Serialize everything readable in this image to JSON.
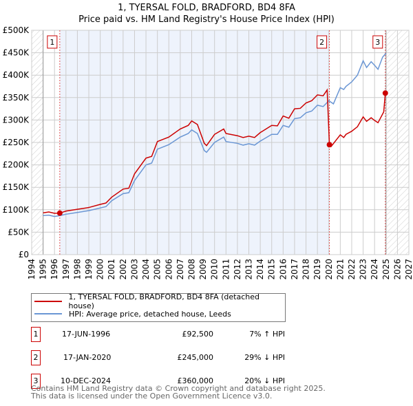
{
  "title": "1, TYERSAL FOLD, BRADFORD, BD4 8FA",
  "subtitle": "Price paid vs. HM Land Registry's House Price Index (HPI)",
  "chart_data": {
    "type": "line",
    "title": "1, TYERSAL FOLD, BRADFORD, BD4 8FA",
    "subtitle": "Price paid vs. HM Land Registry's House Price Index (HPI)",
    "xlim": [
      1994,
      2027
    ],
    "ylim": [
      0,
      500000
    ],
    "x_ticks": [
      "1994",
      "1995",
      "1996",
      "1997",
      "1998",
      "1999",
      "2000",
      "2001",
      "2002",
      "2003",
      "2004",
      "2005",
      "2006",
      "2007",
      "2008",
      "2009",
      "2010",
      "2011",
      "2012",
      "2013",
      "2014",
      "2015",
      "2016",
      "2017",
      "2018",
      "2019",
      "2020",
      "2021",
      "2022",
      "2023",
      "2024",
      "2025",
      "2026",
      "2027"
    ],
    "y_ticks": [
      {
        "v": 0,
        "l": "£0"
      },
      {
        "v": 50000,
        "l": "£50K"
      },
      {
        "v": 100000,
        "l": "£100K"
      },
      {
        "v": 150000,
        "l": "£150K"
      },
      {
        "v": 200000,
        "l": "£200K"
      },
      {
        "v": 250000,
        "l": "£250K"
      },
      {
        "v": 300000,
        "l": "£300K"
      },
      {
        "v": 350000,
        "l": "£350K"
      },
      {
        "v": 400000,
        "l": "£400K"
      },
      {
        "v": 450000,
        "l": "£450K"
      },
      {
        "v": 500000,
        "l": "£500K"
      }
    ],
    "series": [
      {
        "name": "HPI: Average price, detached house, Leeds",
        "color": "#6a96d4",
        "x": [
          1995,
          1995.5,
          1996,
          1996.5,
          1997,
          1998,
          1999,
          2000,
          2000.5,
          2001,
          2002,
          2002.5,
          2003,
          2004,
          2004.5,
          2005,
          2006,
          2007,
          2007.7,
          2008,
          2008.5,
          2009.1,
          2009.3,
          2010,
          2010.8,
          2011,
          2012,
          2012.5,
          2013,
          2013.5,
          2014,
          2015,
          2015.5,
          2016,
          2016.5,
          2017,
          2017.5,
          2018,
          2018.5,
          2019,
          2019.5,
          2020,
          2020.4,
          2021,
          2021.3,
          2021.5,
          2022,
          2022.5,
          2023,
          2023.3,
          2023.7,
          2024,
          2024.3,
          2024.7,
          2025
        ],
        "y": [
          87000,
          88000,
          85000,
          87000,
          90000,
          94000,
          98000,
          104000,
          107000,
          120000,
          136000,
          138000,
          165000,
          200000,
          204000,
          235000,
          245000,
          262000,
          270000,
          278000,
          270000,
          232000,
          228000,
          250000,
          262000,
          252000,
          248000,
          244000,
          247000,
          244000,
          253000,
          268000,
          268000,
          288000,
          284000,
          303000,
          305000,
          316000,
          320000,
          333000,
          330000,
          343000,
          336000,
          372000,
          368000,
          375000,
          385000,
          400000,
          432000,
          417000,
          430000,
          422000,
          413000,
          440000,
          449000
        ]
      },
      {
        "name": "1, TYERSAL FOLD, BRADFORD, BD4 8FA (detached house)",
        "color": "#cc0000",
        "x": [
          1995,
          1995.5,
          1996,
          1996.46,
          1997,
          1998,
          1999,
          2000,
          2000.5,
          2001,
          2002,
          2002.5,
          2003,
          2004,
          2004.5,
          2005,
          2006,
          2007,
          2007.7,
          2008,
          2008.5,
          2009.1,
          2009.3,
          2010,
          2010.8,
          2011,
          2012,
          2012.5,
          2013,
          2013.5,
          2014,
          2015,
          2015.5,
          2016,
          2016.5,
          2017,
          2017.5,
          2018,
          2018.5,
          2019,
          2019.5,
          2019.85,
          2020.05,
          2020.2,
          2021,
          2021.3,
          2021.5,
          2022,
          2022.5,
          2023,
          2023.3,
          2023.7,
          2024,
          2024.3,
          2024.8,
          2024.94
        ],
        "y": [
          93000,
          95000,
          92000,
          92500,
          97000,
          101000,
          105000,
          112000,
          115000,
          128000,
          146000,
          148000,
          180000,
          215000,
          219000,
          252000,
          262000,
          280000,
          288000,
          298000,
          290000,
          248000,
          243000,
          268000,
          280000,
          270000,
          265000,
          261000,
          264000,
          261000,
          272000,
          288000,
          287000,
          309000,
          304000,
          325000,
          326000,
          338000,
          343000,
          356000,
          354000,
          367000,
          245000,
          241000,
          267000,
          261000,
          268000,
          275000,
          285000,
          307000,
          297000,
          305000,
          299000,
          294000,
          318000,
          360000
        ]
      }
    ],
    "sales": [
      {
        "num": "1",
        "date": "17-JUN-1996",
        "x": 1996.46,
        "price": "£92,500",
        "value": 92500,
        "hpi": "7% ↑ HPI"
      },
      {
        "num": "2",
        "date": "17-JAN-2020",
        "x": 2020.05,
        "price": "£245,000",
        "value": 245000,
        "hpi": "29% ↓ HPI"
      },
      {
        "num": "3",
        "date": "10-DEC-2024",
        "x": 2024.94,
        "price": "£360,000",
        "value": 360000,
        "hpi": "20% ↓ HPI"
      }
    ],
    "legend_position": "below"
  },
  "legend": {
    "red": "1, TYERSAL FOLD, BRADFORD, BD4 8FA (detached house)",
    "blue": "HPI: Average price, detached house, Leeds"
  },
  "footer": {
    "line1": "Contains HM Land Registry data © Crown copyright and database right 2025.",
    "line2": "This data is licensed under the Open Government Licence v3.0."
  }
}
